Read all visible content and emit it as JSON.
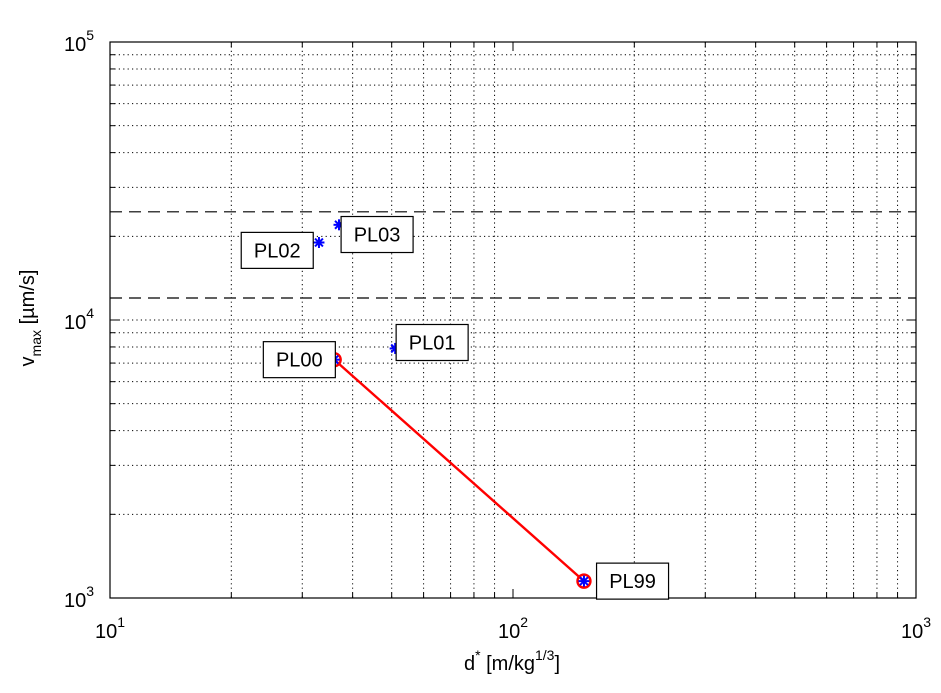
{
  "chart_data": {
    "type": "scatter",
    "title": "",
    "x_scale": "log",
    "y_scale": "log",
    "xlim": [
      10,
      1000
    ],
    "ylim": [
      1000,
      100000
    ],
    "grid": true,
    "grid_style": "dotted",
    "x_ticks": [
      {
        "value": 10,
        "base": "10",
        "exp": "1"
      },
      {
        "value": 100,
        "base": "10",
        "exp": "2"
      },
      {
        "value": 1000,
        "base": "10",
        "exp": "3"
      }
    ],
    "y_ticks": [
      {
        "value": 1000,
        "base": "10",
        "exp": "3"
      },
      {
        "value": 10000,
        "base": "10",
        "exp": "4"
      },
      {
        "value": 100000,
        "base": "10",
        "exp": "5"
      }
    ],
    "xlabel": {
      "prefix": "d",
      "superscript": "*",
      "rest": " [m/kg",
      "unit_exp": "1/3",
      "close": "]"
    },
    "ylabel": {
      "prefix": "v",
      "subscript": "max",
      "rest": " [µm/s]"
    },
    "reference_lines": [
      {
        "y": 24500,
        "style": "dashed",
        "color": "#000000"
      },
      {
        "y": 12000,
        "style": "dashed",
        "color": "#000000"
      }
    ],
    "points": [
      {
        "label": "PL00",
        "x": 36,
        "y": 7200,
        "marker_color": "#0000ff",
        "circled": true
      },
      {
        "label": "PL01",
        "x": 51,
        "y": 7900,
        "marker_color": "#0000ff",
        "circled": false
      },
      {
        "label": "PL02",
        "x": 33,
        "y": 19000,
        "marker_color": "#0000ff",
        "circled": false
      },
      {
        "label": "PL03",
        "x": 37,
        "y": 22000,
        "marker_color": "#0000ff",
        "circled": false
      },
      {
        "label": "PL99",
        "x": 150,
        "y": 1150,
        "marker_color": "#0000ff",
        "circled": true
      }
    ],
    "fit_line": {
      "from": "PL00",
      "to": "PL99",
      "color": "#ff0000"
    },
    "annotations": [
      {
        "text": "PL00",
        "anchor_x": 29.5,
        "anchor_y": 7200,
        "align": "center"
      },
      {
        "text": "PL01",
        "anchor_x": 63,
        "anchor_y": 8300,
        "align": "center"
      },
      {
        "text": "PL02",
        "anchor_x": 26,
        "anchor_y": 17800,
        "align": "center"
      },
      {
        "text": "PL03",
        "anchor_x": 46,
        "anchor_y": 20300,
        "align": "center"
      },
      {
        "text": "PL99",
        "anchor_x": 198,
        "anchor_y": 1150,
        "align": "center"
      }
    ]
  }
}
